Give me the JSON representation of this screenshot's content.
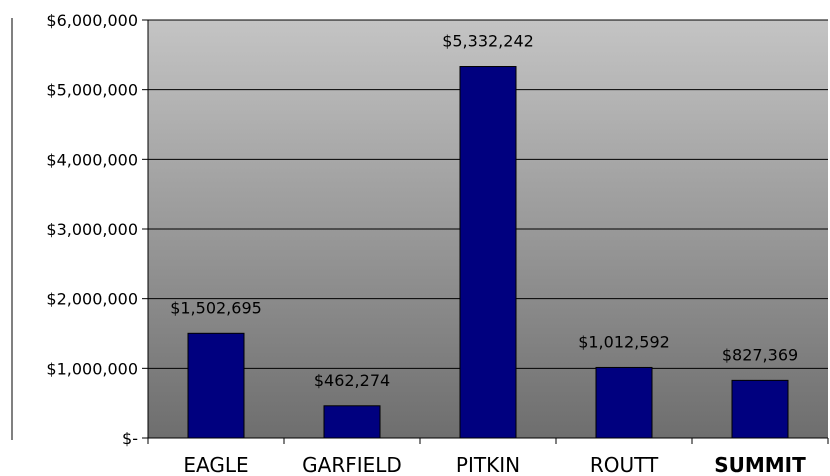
{
  "chart_data": {
    "type": "bar",
    "categories": [
      "EAGLE",
      "GARFIELD",
      "PITKIN",
      "ROUTT",
      "SUMMIT"
    ],
    "values": [
      1502695,
      462274,
      5332242,
      1012592,
      827369
    ],
    "data_labels": [
      "$1,502,695",
      "$462,274",
      "$5,332,242",
      "$1,012,592",
      "$827,369"
    ],
    "highlighted_category": "SUMMIT",
    "title": "",
    "xlabel": "",
    "ylabel": "",
    "ylim": [
      0,
      6000000
    ],
    "y_ticks": [
      0,
      1000000,
      2000000,
      3000000,
      4000000,
      5000000,
      6000000
    ],
    "y_tick_labels": [
      "$-",
      "$1,000,000",
      "$2,000,000",
      "$3,000,000",
      "$4,000,000",
      "$5,000,000",
      "$6,000,000"
    ],
    "grid": true,
    "legend": "none",
    "colors": {
      "bar": "#00007f",
      "plot_bg_top": "#c4c4c4",
      "plot_bg_bottom": "#6e6e6e",
      "gridline": "#000000"
    }
  }
}
